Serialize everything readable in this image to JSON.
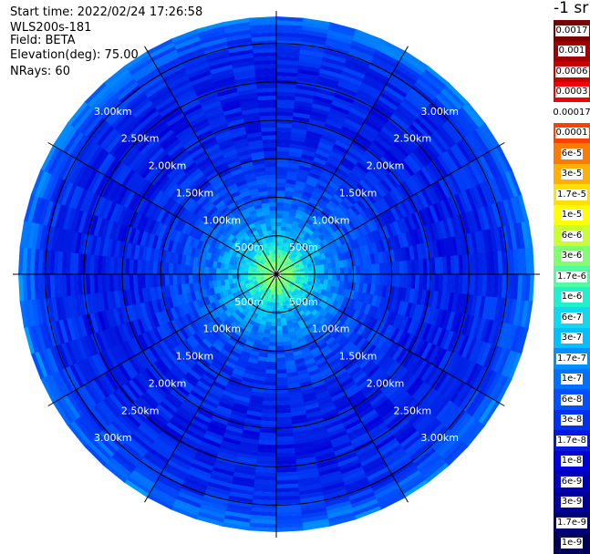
{
  "header": {
    "start_time": "Start time: 2022/02/24 17:26:58",
    "instrument": "WLS200s-181",
    "field": "Field: BETA",
    "elevation": "Elevation(deg): 75.00",
    "nrays": "NRays: 60"
  },
  "colorbar": {
    "units": "-1 sr",
    "entries": [
      {
        "label": "0.0017",
        "color": "#7a0000"
      },
      {
        "label": "0.001",
        "color": "#a00000"
      },
      {
        "label": "0.0006",
        "color": "#c80000"
      },
      {
        "label": "0.0003",
        "color": "#f00000"
      },
      {
        "label": "0.00017",
        "color": "#ffffff"
      },
      {
        "label": "0.0001",
        "color": "#ff4000"
      },
      {
        "label": "6e-5",
        "color": "#ff7a00"
      },
      {
        "label": "3e-5",
        "color": "#ffb000"
      },
      {
        "label": "1.7e-5",
        "color": "#ffe000"
      },
      {
        "label": "1e-5",
        "color": "#ffff00"
      },
      {
        "label": "6e-6",
        "color": "#c8ff30"
      },
      {
        "label": "3e-6",
        "color": "#80ff70"
      },
      {
        "label": "1.7e-6",
        "color": "#50ffa0"
      },
      {
        "label": "1e-6",
        "color": "#20f0d0"
      },
      {
        "label": "6e-7",
        "color": "#10d8f0"
      },
      {
        "label": "3e-7",
        "color": "#00c0ff"
      },
      {
        "label": "1.7e-7",
        "color": "#0090ff"
      },
      {
        "label": "1e-7",
        "color": "#0070ff"
      },
      {
        "label": "6e-8",
        "color": "#0050ff"
      },
      {
        "label": "3e-8",
        "color": "#0030f0"
      },
      {
        "label": "1.7e-8",
        "color": "#0018e0"
      },
      {
        "label": "1e-8",
        "color": "#0000d8"
      },
      {
        "label": "6e-9",
        "color": "#0000b8"
      },
      {
        "label": "3e-9",
        "color": "#000098"
      },
      {
        "label": "1.7e-9",
        "color": "#000078"
      },
      {
        "label": "1e-9",
        "color": "#000058"
      }
    ]
  },
  "chart_data": {
    "type": "heatmap",
    "projection": "polar (PPI)",
    "field": "BETA",
    "elevation_deg": 75.0,
    "n_rays": 60,
    "range_rings_km": [
      0.5,
      1.0,
      1.5,
      2.0,
      2.5,
      3.0
    ],
    "ring_labels": [
      "500m",
      "1.00km",
      "1.50km",
      "2.00km",
      "2.50km",
      "3.00km"
    ],
    "max_range_km": 3.35,
    "scale": "log",
    "value_range": [
      1e-09,
      0.0017
    ],
    "radial_profile": [
      {
        "range_km": 0.15,
        "value": 3e-06
      },
      {
        "range_km": 0.3,
        "value": 1e-06
      },
      {
        "range_km": 0.5,
        "value": 3e-07
      },
      {
        "range_km": 0.7,
        "value": 1.7e-07
      },
      {
        "range_km": 1.0,
        "value": 6e-08
      },
      {
        "range_km": 1.5,
        "value": 3e-08
      },
      {
        "range_km": 2.0,
        "value": 2e-08
      },
      {
        "range_km": 2.5,
        "value": 2e-08
      },
      {
        "range_km": 3.0,
        "value": 3e-08
      },
      {
        "range_km": 3.3,
        "value": 1e-07
      }
    ]
  }
}
